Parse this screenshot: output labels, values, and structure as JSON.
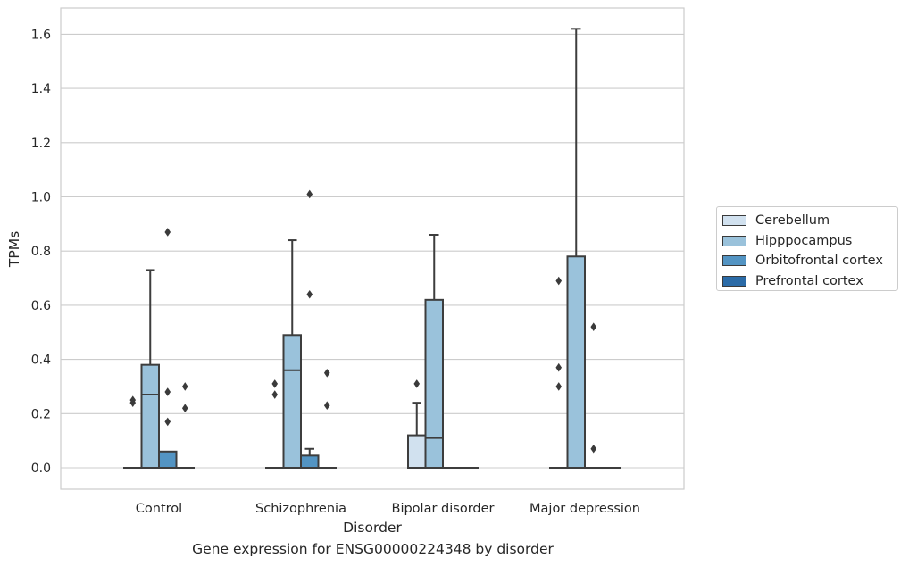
{
  "chart_data": {
    "type": "boxplot",
    "title": "",
    "caption": "Gene expression for ENSG00000224348 by disorder",
    "xlabel": "Disorder",
    "ylabel": "TPMs",
    "ylim": [
      -0.08,
      1.7
    ],
    "yticks": [
      0.0,
      0.2,
      0.4,
      0.6,
      0.8,
      1.0,
      1.2,
      1.4,
      1.6
    ],
    "ytick_labels": [
      "0.0",
      "0.2",
      "0.4",
      "0.6",
      "0.8",
      "1.0",
      "1.2",
      "1.4",
      "1.6"
    ],
    "grid": true,
    "legend_position": "right",
    "categories": [
      "Control",
      "Schizophrenia",
      "Bipolar disorder",
      "Major depression"
    ],
    "series": [
      {
        "name": "Cerebellum",
        "color": "#d1e1ef",
        "boxes": [
          {
            "min": 0,
            "q1": 0,
            "median": 0,
            "q3": 0,
            "max": 0,
            "outliers": [
              0.24,
              0.25
            ]
          },
          {
            "min": 0,
            "q1": 0,
            "median": 0,
            "q3": 0,
            "max": 0,
            "outliers": [
              0.27,
              0.31
            ]
          },
          {
            "min": 0,
            "q1": 0,
            "median": 0,
            "q3": 0.12,
            "max": 0.24,
            "outliers": [
              0.31
            ]
          },
          {
            "min": 0,
            "q1": 0,
            "median": 0,
            "q3": 0,
            "max": 0,
            "outliers": [
              0.3,
              0.37,
              0.69
            ]
          }
        ]
      },
      {
        "name": "Hipppocampus",
        "color": "#9ac2db",
        "boxes": [
          {
            "min": 0,
            "q1": 0,
            "median": 0.27,
            "q3": 0.38,
            "max": 0.73,
            "outliers": []
          },
          {
            "min": 0,
            "q1": 0,
            "median": 0.36,
            "q3": 0.49,
            "max": 0.84,
            "outliers": []
          },
          {
            "min": 0,
            "q1": 0,
            "median": 0.11,
            "q3": 0.62,
            "max": 0.86,
            "outliers": []
          },
          {
            "min": 0,
            "q1": 0,
            "median": 0,
            "q3": 0.78,
            "max": 1.62,
            "outliers": []
          }
        ]
      },
      {
        "name": "Orbitofrontal cortex",
        "color": "#5394c3",
        "boxes": [
          {
            "min": 0,
            "q1": 0,
            "median": 0,
            "q3": 0.06,
            "max": 0.06,
            "outliers": [
              0.17,
              0.28,
              0.87
            ]
          },
          {
            "min": 0,
            "q1": 0,
            "median": 0,
            "q3": 0.045,
            "max": 0.07,
            "outliers": [
              0.64,
              1.01
            ]
          },
          {
            "min": 0,
            "q1": 0,
            "median": 0,
            "q3": 0,
            "max": 0,
            "outliers": []
          },
          {
            "min": 0,
            "q1": 0,
            "median": 0,
            "q3": 0,
            "max": 0,
            "outliers": [
              0.07,
              0.52
            ]
          }
        ]
      },
      {
        "name": "Prefrontal cortex",
        "color": "#2b6ba7",
        "boxes": [
          {
            "min": 0,
            "q1": 0,
            "median": 0,
            "q3": 0,
            "max": 0,
            "outliers": [
              0.22,
              0.3
            ]
          },
          {
            "min": 0,
            "q1": 0,
            "median": 0,
            "q3": 0,
            "max": 0,
            "outliers": [
              0.23,
              0.35
            ]
          },
          {
            "min": 0,
            "q1": 0,
            "median": 0,
            "q3": 0,
            "max": 0,
            "outliers": []
          },
          {
            "min": 0,
            "q1": 0,
            "median": 0,
            "q3": 0,
            "max": 0,
            "outliers": []
          }
        ]
      }
    ]
  }
}
